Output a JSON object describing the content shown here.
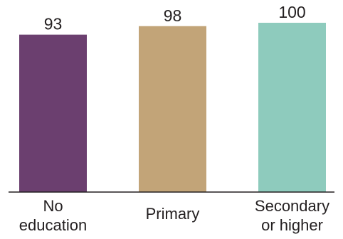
{
  "chart_data": {
    "type": "bar",
    "categories": [
      [
        "No",
        "education"
      ],
      [
        "Primary"
      ],
      [
        "Secondary",
        "or higher"
      ]
    ],
    "values": [
      93,
      98,
      100
    ],
    "value_labels": [
      "93",
      "98",
      "100"
    ],
    "colors": [
      "#6b3f6f",
      "#c2a478",
      "#8ecbbd"
    ],
    "ylim": [
      0,
      100
    ],
    "grid": false,
    "legend": "none",
    "title": "",
    "xlabel": "",
    "ylabel": ""
  }
}
